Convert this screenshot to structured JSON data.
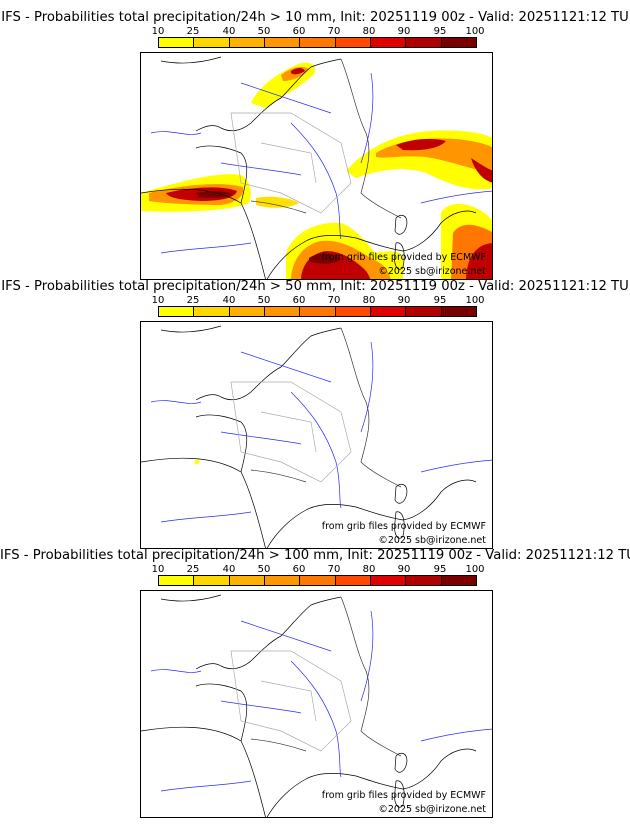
{
  "chart_data": [
    {
      "type": "map",
      "title": "IFS - Probabilities total precipitation/24h > 10 mm, Init: 20251119 00z - Valid: 20251121:12 TU",
      "colorbar": {
        "ticks": [
          "10",
          "25",
          "40",
          "50",
          "60",
          "70",
          "80",
          "90",
          "95",
          "100"
        ],
        "colors": [
          "#ffff00",
          "#ffd700",
          "#ffb000",
          "#ff9500",
          "#ff7700",
          "#ff4a00",
          "#e00000",
          "#b00000",
          "#7a0000"
        ]
      },
      "credit_source": "from grib files provided by ECMWF",
      "credit_copyright": "©2025 sb@irizone.net",
      "shaded_regions": [
        {
          "area": "Basque country / western Pyrenees",
          "max_probability": 95
        },
        {
          "area": "Gulf of Lion / Balearic Sea",
          "max_probability": 95
        },
        {
          "area": "Alps / northern Italy",
          "max_probability": 90
        },
        {
          "area": "Liguria / Tuscany / Corsica east",
          "max_probability": 95
        },
        {
          "area": "Belgium / Netherlands coast",
          "max_probability": 80
        },
        {
          "area": "Normandy / Channel coast",
          "max_probability": 40
        }
      ]
    },
    {
      "type": "map",
      "title": "IFS - Probabilities total precipitation/24h > 50 mm, Init: 20251119 00z - Valid: 20251121:12 TU",
      "colorbar": {
        "ticks": [
          "10",
          "25",
          "40",
          "50",
          "60",
          "70",
          "80",
          "90",
          "95",
          "100"
        ],
        "colors": [
          "#ffff00",
          "#ffd700",
          "#ffb000",
          "#ff9500",
          "#ff7700",
          "#ff4a00",
          "#e00000",
          "#b00000",
          "#7a0000"
        ]
      },
      "credit_source": "from grib files provided by ECMWF",
      "credit_copyright": "©2025 sb@irizone.net",
      "shaded_regions": [
        {
          "area": "Southwest France (isolated)",
          "max_probability": 10
        }
      ]
    },
    {
      "type": "map",
      "title": "IFS - Probabilities total precipitation/24h > 100 mm, Init: 20251119 00z - Valid: 20251121:12 TU",
      "colorbar": {
        "ticks": [
          "10",
          "25",
          "40",
          "50",
          "60",
          "70",
          "80",
          "90",
          "95",
          "100"
        ],
        "colors": [
          "#ffff00",
          "#ffd700",
          "#ffb000",
          "#ff9500",
          "#ff7700",
          "#ff4a00",
          "#e00000",
          "#b00000",
          "#7a0000"
        ]
      },
      "credit_source": "from grib files provided by ECMWF",
      "credit_copyright": "©2025 sb@irizone.net",
      "shaded_regions": []
    }
  ]
}
